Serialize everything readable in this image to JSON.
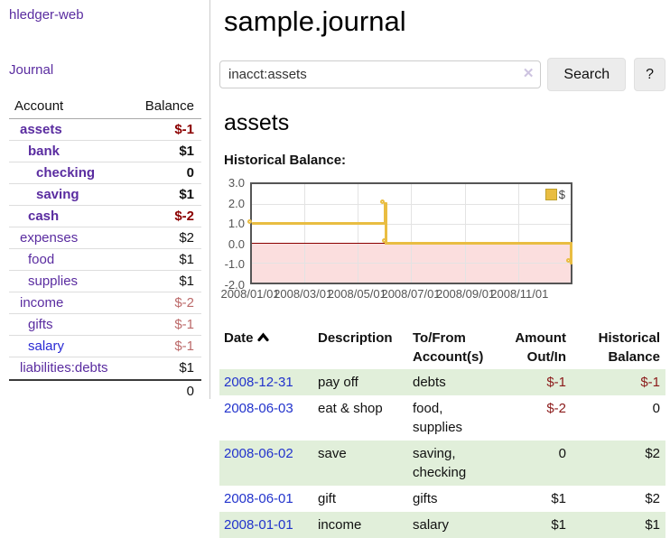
{
  "app": {
    "brand": "hledger-web",
    "nav_journal": "Journal"
  },
  "sidebar": {
    "header": {
      "account": "Account",
      "balance": "Balance"
    },
    "accounts": [
      {
        "name": "assets",
        "depth": 1,
        "balance": "$-1",
        "matched": true
      },
      {
        "name": "bank",
        "depth": 2,
        "balance": "$1",
        "matched": true
      },
      {
        "name": "checking",
        "depth": 3,
        "balance": "0",
        "matched": true
      },
      {
        "name": "saving",
        "depth": 3,
        "balance": "$1",
        "matched": true
      },
      {
        "name": "cash",
        "depth": 2,
        "balance": "$-2",
        "matched": true
      },
      {
        "name": "expenses",
        "depth": 1,
        "balance": "$2"
      },
      {
        "name": "food",
        "depth": 2,
        "balance": "$1"
      },
      {
        "name": "supplies",
        "depth": 2,
        "balance": "$1"
      },
      {
        "name": "income",
        "depth": 1,
        "balance": "$-2"
      },
      {
        "name": "gifts",
        "depth": 2,
        "balance": "$-1"
      },
      {
        "name": "salary",
        "depth": 2,
        "balance": "$-1",
        "blue_link": true
      },
      {
        "name": "liabilities:debts",
        "depth": 1,
        "balance": "$1"
      }
    ],
    "total": "0"
  },
  "header": {
    "title": "sample.journal"
  },
  "search": {
    "value": "inacct:assets",
    "clear_icon": "✕",
    "button": "Search",
    "help_button": "?"
  },
  "account_page": {
    "title": "assets",
    "chart_label": "Historical Balance:"
  },
  "chart_data": {
    "type": "line",
    "title": "Historical Balance",
    "style": "step",
    "series": [
      {
        "name": "$",
        "color": "#e9bd42",
        "points": [
          [
            "2008-01-01",
            1
          ],
          [
            "2008-06-01",
            2
          ],
          [
            "2008-06-03",
            0
          ],
          [
            "2008-12-31",
            -1
          ]
        ]
      }
    ],
    "xlim": [
      "2008-01-01",
      "2008-12-31"
    ],
    "ylim": [
      -2,
      3
    ],
    "y_ticks": [
      "3.0",
      "2.0",
      "1.0",
      "0.0",
      "-1.0",
      "-2.0"
    ],
    "x_ticks": [
      "2008/01/01",
      "2008/03/01",
      "2008/05/01",
      "2008/07/01",
      "2008/09/01",
      "2008/11/01"
    ],
    "legend_position": "top-right",
    "grid": true,
    "negative_region_color": "#fbdede",
    "zero_line_color": "#8b0000"
  },
  "register": {
    "columns": [
      {
        "lines": [
          "Date"
        ],
        "sorted": "asc"
      },
      {
        "lines": [
          "Description"
        ]
      },
      {
        "lines": [
          "To/From",
          "Account(s)"
        ]
      },
      {
        "lines": [
          "Amount",
          "Out/In"
        ],
        "align": "right"
      },
      {
        "lines": [
          "Historical",
          "Balance"
        ],
        "align": "right"
      }
    ],
    "rows": [
      {
        "date": "2008-12-31",
        "description": "pay off",
        "accounts": "debts",
        "amount": "$-1",
        "balance": "$-1",
        "shaded": true
      },
      {
        "date": "2008-06-03",
        "description": "eat & shop",
        "accounts": "food, supplies",
        "amount": "$-2",
        "balance": "0",
        "shaded": false
      },
      {
        "date": "2008-06-02",
        "description": "save",
        "accounts": "saving, checking",
        "amount": "0",
        "balance": "$2",
        "shaded": true
      },
      {
        "date": "2008-06-01",
        "description": "gift",
        "accounts": "gifts",
        "amount": "$1",
        "balance": "$2",
        "shaded": false
      },
      {
        "date": "2008-01-01",
        "description": "income",
        "accounts": "salary",
        "amount": "$1",
        "balance": "$1",
        "shaded": true
      }
    ]
  },
  "colors": {
    "link_purple": "#5a2ca0",
    "link_blue": "#2a2ad4",
    "negative_strong": "#8b0000",
    "negative_soft": "#bc6a6a",
    "row_shade_green": "#e1efda",
    "series_gold": "#e9bd42"
  }
}
